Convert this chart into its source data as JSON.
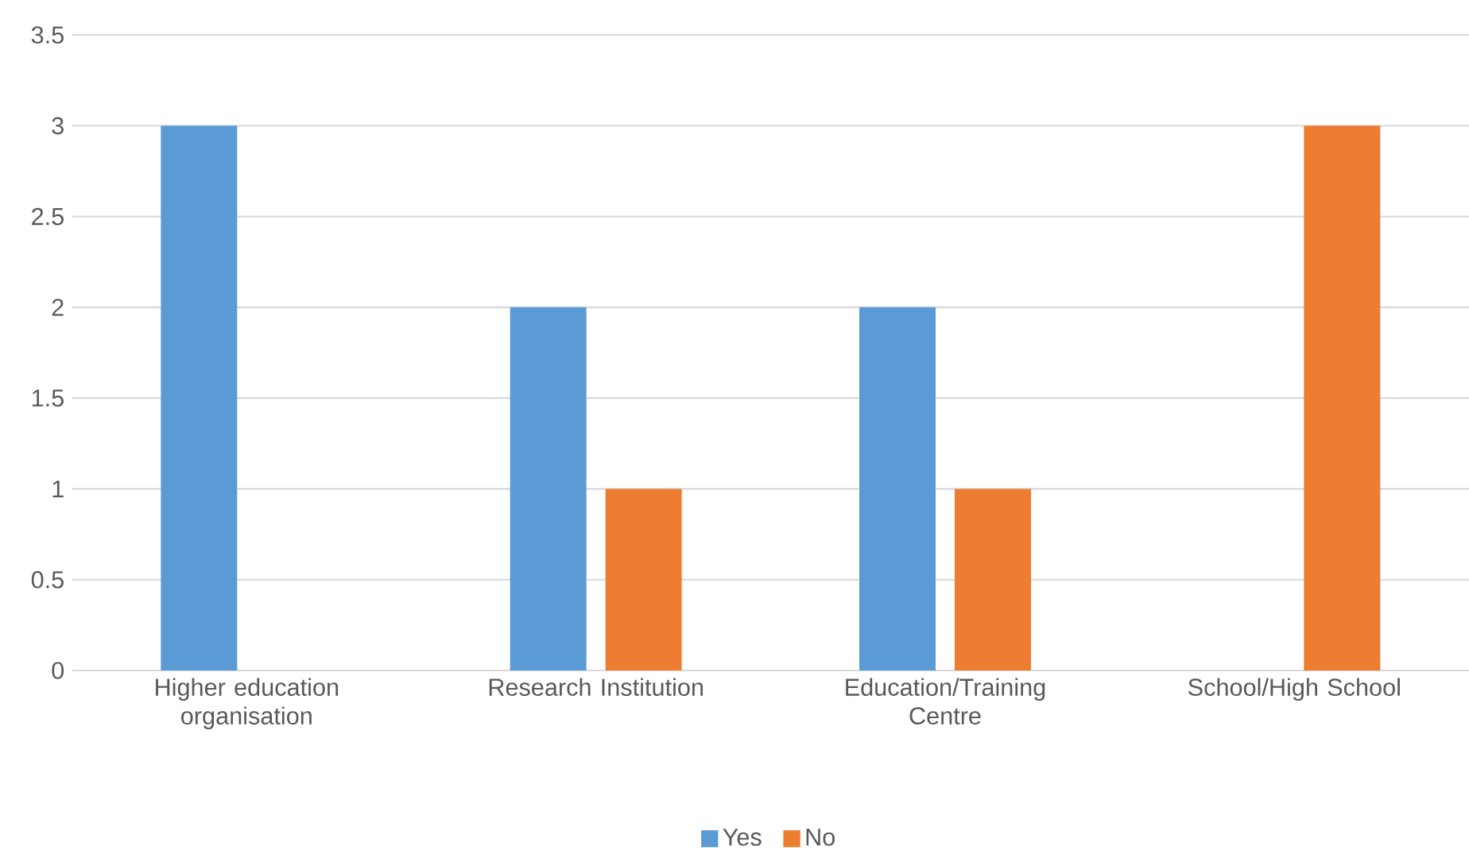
{
  "chart_data": {
    "type": "bar",
    "categories": [
      "Higher education organisation",
      "Research Institution",
      "Education/Training Centre",
      "School/High School"
    ],
    "series": [
      {
        "name": "Yes",
        "color": "#5b9bd5",
        "values": [
          3,
          2,
          2,
          0
        ]
      },
      {
        "name": "No",
        "color": "#ed7d31",
        "values": [
          0,
          1,
          1,
          3
        ]
      }
    ],
    "ylim": [
      0,
      3.5
    ],
    "yticks": [
      0,
      0.5,
      1,
      1.5,
      2,
      2.5,
      3,
      3.5
    ],
    "grid": "y",
    "legend": "bottom"
  }
}
